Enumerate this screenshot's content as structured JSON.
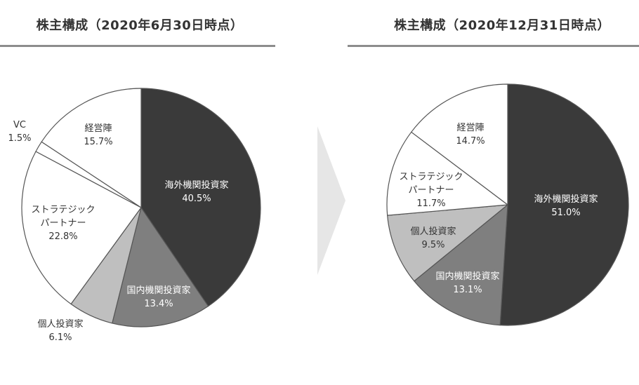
{
  "colors": {
    "overseas": "#3a3a3a",
    "domestic": "#7f7f7f",
    "individual": "#bfbfbf",
    "strategic": "#ffffff",
    "vc": "#ffffff",
    "management": "#ffffff",
    "outline": "#555555",
    "arrow": "#e6e6e6"
  },
  "chart_data": [
    {
      "type": "pie",
      "title": "株主構成（2020年6月30日時点）",
      "slices": [
        {
          "label": "海外機関投資家",
          "value": 40.5,
          "value_label": "40.5%",
          "color_key": "overseas"
        },
        {
          "label": "国内機関投資家",
          "value": 13.4,
          "value_label": "13.4%",
          "color_key": "domestic"
        },
        {
          "label": "個人投資家",
          "value": 6.1,
          "value_label": "6.1%",
          "color_key": "individual"
        },
        {
          "label": "ストラテジック\nパートナー",
          "value": 22.8,
          "value_label": "22.8%",
          "color_key": "strategic"
        },
        {
          "label": "VC",
          "value": 1.5,
          "value_label": "1.5%",
          "color_key": "vc"
        },
        {
          "label": "経営陣",
          "value": 15.7,
          "value_label": "15.7%",
          "color_key": "management"
        }
      ]
    },
    {
      "type": "pie",
      "title": "株主構成（2020年12月31日時点）",
      "slices": [
        {
          "label": "海外機関投資家",
          "value": 51.0,
          "value_label": "51.0%",
          "color_key": "overseas"
        },
        {
          "label": "国内機関投資家",
          "value": 13.1,
          "value_label": "13.1%",
          "color_key": "domestic"
        },
        {
          "label": "個人投資家",
          "value": 9.5,
          "value_label": "9.5%",
          "color_key": "individual"
        },
        {
          "label": "ストラテジック\nパートナー",
          "value": 11.7,
          "value_label": "11.7%",
          "color_key": "strategic"
        },
        {
          "label": "経営陣",
          "value": 14.7,
          "value_label": "14.7%",
          "color_key": "management"
        }
      ]
    }
  ]
}
